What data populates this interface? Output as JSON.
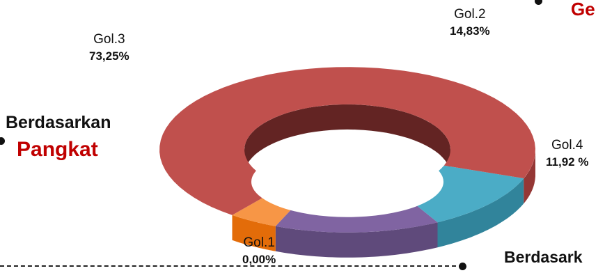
{
  "chart_data": {
    "type": "donut-3d",
    "slices": [
      {
        "label": "Gol.1",
        "value_text": "0,00%",
        "value": 0.0,
        "top": "#f79646",
        "side": "#e36c09",
        "inner": "#9d4a06"
      },
      {
        "label": "Gol.2",
        "value_text": "14,83%",
        "value": 14.83,
        "top": "#8064a2",
        "side": "#5f4a7b",
        "inner": "#3f3052"
      },
      {
        "label": "Gol.4",
        "value_text": "11,92 %",
        "value": 11.92,
        "top": "#4bacc6",
        "side": "#31849b",
        "inner": "#215866"
      },
      {
        "label": "Gol.3",
        "value_text": "73,25%",
        "value": 73.25,
        "top": "#c0504d",
        "side": "#953735",
        "inner": "#632423"
      }
    ]
  },
  "headings": {
    "pangkat_top": "Berdasarkan",
    "pangkat_bottom": "Pangkat",
    "right_top_cut": "Ge",
    "bottom_right_cut": "Berdasark"
  },
  "colors": {
    "accent": "#c00000",
    "text": "#111111"
  }
}
